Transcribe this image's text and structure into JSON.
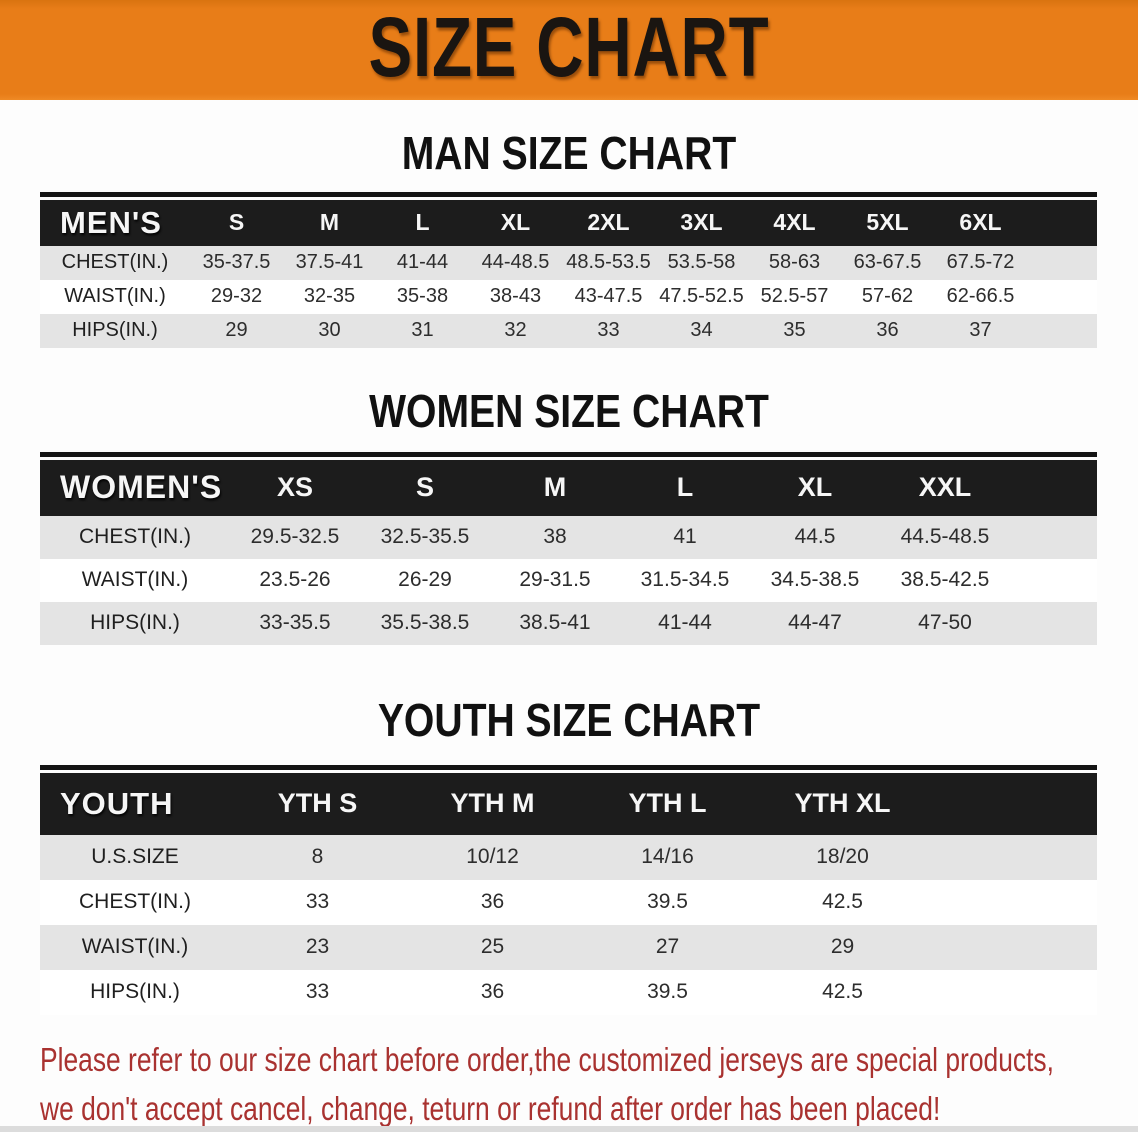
{
  "banner": {
    "title": "SIZE CHART",
    "bg_color": "#e87d18"
  },
  "colors": {
    "header_band": "#1c1c1c",
    "row_stripe": "#e4e4e4",
    "disclaimer_text": "#a93230"
  },
  "sections": [
    {
      "title": "MAN SIZE CHART",
      "header_label": "MEN'S",
      "columns": [
        "S",
        "M",
        "L",
        "XL",
        "2XL",
        "3XL",
        "4XL",
        "5XL",
        "6XL"
      ],
      "rows": [
        {
          "label": "CHEST(IN.)",
          "values": [
            "35-37.5",
            "37.5-41",
            "41-44",
            "44-48.5",
            "48.5-53.5",
            "53.5-58",
            "58-63",
            "63-67.5",
            "67.5-72"
          ]
        },
        {
          "label": "WAIST(IN.)",
          "values": [
            "29-32",
            "32-35",
            "35-38",
            "38-43",
            "43-47.5",
            "47.5-52.5",
            "52.5-57",
            "57-62",
            "62-66.5"
          ]
        },
        {
          "label": "HIPS(IN.)",
          "values": [
            "29",
            "30",
            "31",
            "32",
            "33",
            "34",
            "35",
            "36",
            "37"
          ]
        }
      ]
    },
    {
      "title": "WOMEN SIZE CHART",
      "header_label": "WOMEN'S",
      "columns": [
        "XS",
        "S",
        "M",
        "L",
        "XL",
        "XXL"
      ],
      "rows": [
        {
          "label": "CHEST(IN.)",
          "values": [
            "29.5-32.5",
            "32.5-35.5",
            "38",
            "41",
            "44.5",
            "44.5-48.5"
          ]
        },
        {
          "label": "WAIST(IN.)",
          "values": [
            "23.5-26",
            "26-29",
            "29-31.5",
            "31.5-34.5",
            "34.5-38.5",
            "38.5-42.5"
          ]
        },
        {
          "label": "HIPS(IN.)",
          "values": [
            "33-35.5",
            "35.5-38.5",
            "38.5-41",
            "41-44",
            "44-47",
            "47-50"
          ]
        }
      ]
    },
    {
      "title": "YOUTH SIZE CHART",
      "header_label": "YOUTH",
      "columns": [
        "YTH S",
        "YTH M",
        "YTH L",
        "YTH XL"
      ],
      "rows": [
        {
          "label": "U.S.SIZE",
          "values": [
            "8",
            "10/12",
            "14/16",
            "18/20"
          ]
        },
        {
          "label": "CHEST(IN.)",
          "values": [
            "33",
            "36",
            "39.5",
            "42.5"
          ]
        },
        {
          "label": "WAIST(IN.)",
          "values": [
            "23",
            "25",
            "27",
            "29"
          ]
        },
        {
          "label": "HIPS(IN.)",
          "values": [
            "33",
            "36",
            "39.5",
            "42.5"
          ]
        }
      ]
    }
  ],
  "disclaimer": {
    "line1": "Please refer to our size chart before order,the customized jerseys are special products,",
    "line2": "we don't accept cancel, change, teturn or refund after order has been placed!"
  }
}
